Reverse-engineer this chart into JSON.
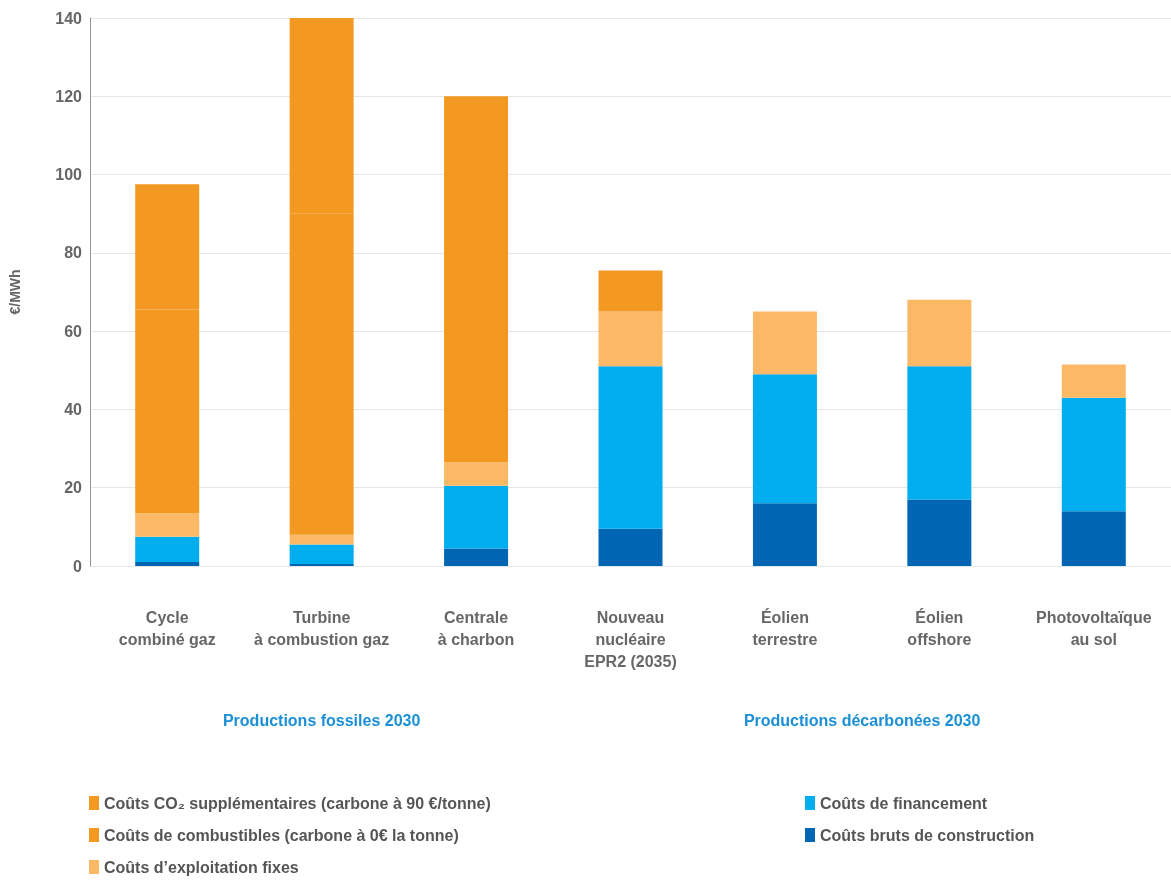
{
  "chart_data": {
    "type": "bar",
    "stacked": true,
    "ylabel": "€/MWh",
    "categories": [
      "Cycle\ncombiné gaz",
      "Turbine\nà combustion gaz",
      "Centrale\nà charbon",
      "Nouveau\nnucléaire\nEPR2 (2035)",
      "Éolien\nterrestre",
      "Éolien\noffshore",
      "Photovoltaïque\nau sol"
    ],
    "series": [
      {
        "name": "Coûts bruts de construction",
        "color": "#0066b3",
        "values": [
          1,
          0.5,
          4.5,
          9.5,
          16,
          17,
          14
        ]
      },
      {
        "name": "Coûts de financement",
        "color": "#00adef",
        "values": [
          6.5,
          5,
          16,
          41.5,
          33,
          34,
          29
        ]
      },
      {
        "name": "Coûts d’exploitation fixes",
        "color": "#fbb966",
        "values": [
          6,
          2.5,
          6,
          14,
          16,
          17,
          8.5
        ]
      },
      {
        "name": "Coûts de combustibles (carbone à 0€ la tonne)",
        "color": "#f39820",
        "values": [
          52,
          82,
          20,
          10.5,
          null,
          null,
          null
        ]
      },
      {
        "name": "Coûts CO₂ supplémentaires (carbone à 90 €/tonne)",
        "color": "#f39820",
        "values": [
          32,
          50,
          73.5,
          null,
          null,
          null,
          null
        ]
      }
    ],
    "ylim": [
      0,
      140
    ],
    "yticks": [
      0,
      20,
      40,
      60,
      80,
      100,
      120,
      140
    ],
    "grid": "y",
    "legend": "bottom",
    "annotations": [
      "Productions fossiles 2030",
      "Productions décarbonées 2030"
    ]
  }
}
